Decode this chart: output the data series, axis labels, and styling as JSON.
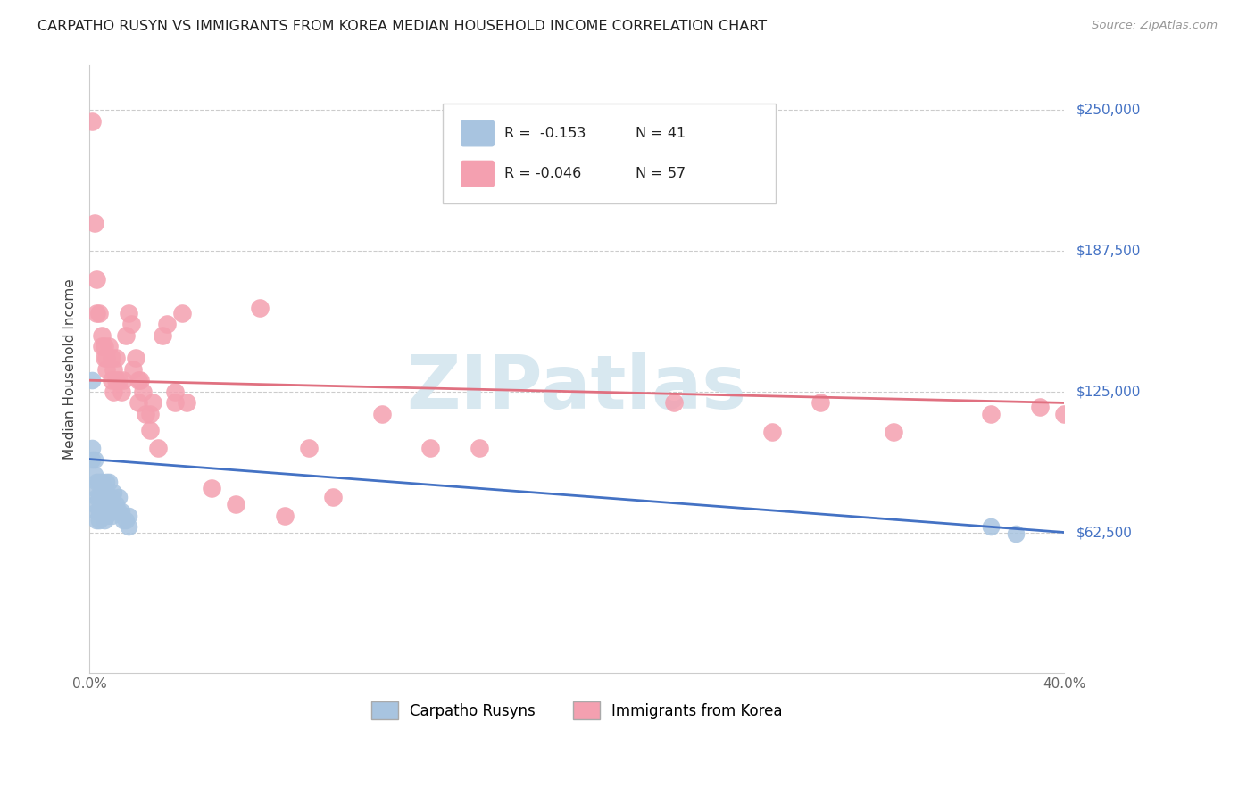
{
  "title": "CARPATHO RUSYN VS IMMIGRANTS FROM KOREA MEDIAN HOUSEHOLD INCOME CORRELATION CHART",
  "source": "Source: ZipAtlas.com",
  "ylabel": "Median Household Income",
  "yticks": [
    0,
    62500,
    125000,
    187500,
    250000
  ],
  "ytick_labels": [
    "",
    "$62,500",
    "$125,000",
    "$187,500",
    "$250,000"
  ],
  "xmin": 0.0,
  "xmax": 0.4,
  "ymin": 0,
  "ymax": 270000,
  "legend_label_blue": "Carpatho Rusyns",
  "legend_label_pink": "Immigrants from Korea",
  "watermark": "ZIPatlas",
  "blue_color": "#a8c4e0",
  "pink_color": "#f4a0b0",
  "blue_line_color": "#4472c4",
  "pink_line_color": "#e07080",
  "blue_r": -0.153,
  "blue_n": 41,
  "pink_r": -0.046,
  "pink_n": 57,
  "blue_x": [
    0.001,
    0.001,
    0.001,
    0.002,
    0.002,
    0.002,
    0.002,
    0.003,
    0.003,
    0.003,
    0.003,
    0.004,
    0.004,
    0.004,
    0.004,
    0.005,
    0.005,
    0.005,
    0.006,
    0.006,
    0.006,
    0.007,
    0.007,
    0.007,
    0.008,
    0.008,
    0.008,
    0.009,
    0.009,
    0.01,
    0.01,
    0.011,
    0.012,
    0.012,
    0.013,
    0.014,
    0.015,
    0.016,
    0.016,
    0.37,
    0.38
  ],
  "blue_y": [
    130000,
    95000,
    100000,
    82000,
    88000,
    95000,
    75000,
    68000,
    72000,
    78000,
    85000,
    72000,
    78000,
    85000,
    68000,
    72000,
    78000,
    85000,
    68000,
    75000,
    82000,
    70000,
    78000,
    85000,
    72000,
    78000,
    85000,
    70000,
    78000,
    72000,
    80000,
    75000,
    72000,
    78000,
    72000,
    68000,
    68000,
    70000,
    65000,
    65000,
    62000
  ],
  "pink_x": [
    0.001,
    0.002,
    0.003,
    0.003,
    0.004,
    0.005,
    0.005,
    0.006,
    0.006,
    0.007,
    0.007,
    0.008,
    0.009,
    0.009,
    0.01,
    0.01,
    0.011,
    0.011,
    0.012,
    0.013,
    0.014,
    0.015,
    0.016,
    0.017,
    0.018,
    0.019,
    0.02,
    0.02,
    0.021,
    0.022,
    0.023,
    0.025,
    0.025,
    0.026,
    0.028,
    0.03,
    0.032,
    0.035,
    0.035,
    0.038,
    0.04,
    0.05,
    0.06,
    0.07,
    0.08,
    0.09,
    0.1,
    0.12,
    0.14,
    0.16,
    0.24,
    0.28,
    0.3,
    0.33,
    0.37,
    0.39,
    0.4
  ],
  "pink_y": [
    245000,
    200000,
    160000,
    175000,
    160000,
    150000,
    145000,
    140000,
    145000,
    135000,
    140000,
    145000,
    130000,
    140000,
    125000,
    135000,
    130000,
    140000,
    130000,
    125000,
    130000,
    150000,
    160000,
    155000,
    135000,
    140000,
    120000,
    130000,
    130000,
    125000,
    115000,
    115000,
    108000,
    120000,
    100000,
    150000,
    155000,
    120000,
    125000,
    160000,
    120000,
    82000,
    75000,
    162000,
    70000,
    100000,
    78000,
    115000,
    100000,
    100000,
    120000,
    107000,
    120000,
    107000,
    115000,
    118000,
    115000
  ]
}
